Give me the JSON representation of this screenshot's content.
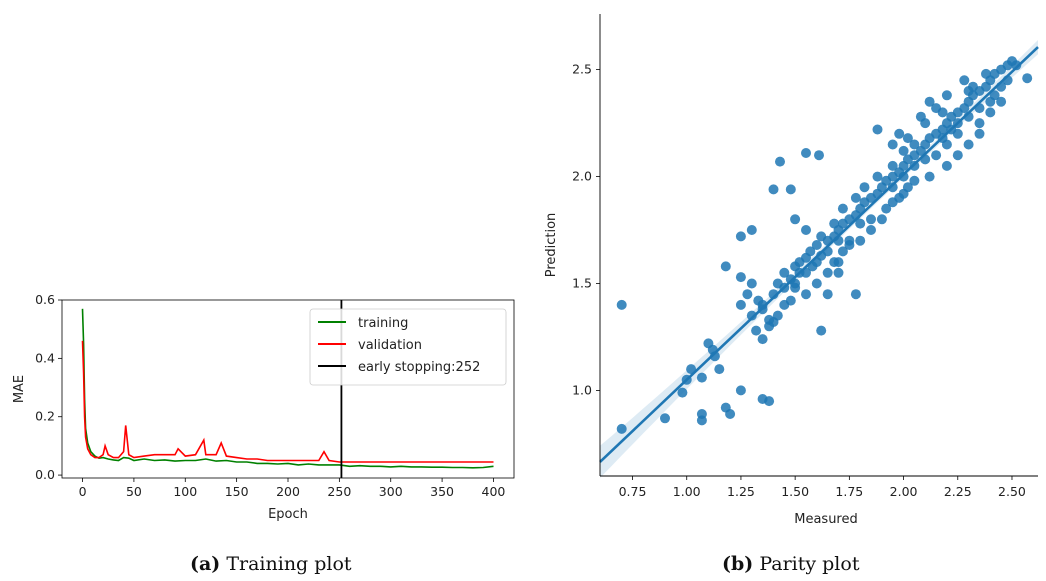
{
  "captions": {
    "a": {
      "tag": "(a)",
      "text": "Training plot"
    },
    "b": {
      "tag": "(b)",
      "text": "Parity plot"
    }
  },
  "chart_data": [
    {
      "type": "line",
      "xlabel": "Epoch",
      "ylabel": "MAE",
      "xlim": [
        -20,
        420
      ],
      "ylim": [
        -0.01,
        0.6
      ],
      "xticks": [
        0,
        50,
        100,
        150,
        200,
        250,
        300,
        350,
        400
      ],
      "yticks": [
        0.0,
        0.2,
        0.4,
        0.6
      ],
      "grid": false,
      "legend_position": "top-right",
      "series": [
        {
          "name": "training",
          "color": "#008000",
          "x": [
            0,
            1,
            2,
            3,
            5,
            8,
            12,
            16,
            20,
            25,
            30,
            35,
            40,
            45,
            50,
            60,
            70,
            80,
            90,
            100,
            110,
            120,
            130,
            140,
            150,
            160,
            170,
            180,
            190,
            200,
            210,
            220,
            230,
            240,
            250,
            260,
            270,
            280,
            290,
            300,
            310,
            320,
            330,
            340,
            350,
            360,
            370,
            380,
            390,
            400
          ],
          "y": [
            0.57,
            0.45,
            0.26,
            0.16,
            0.11,
            0.08,
            0.065,
            0.058,
            0.06,
            0.055,
            0.052,
            0.05,
            0.06,
            0.058,
            0.05,
            0.055,
            0.05,
            0.052,
            0.048,
            0.05,
            0.05,
            0.055,
            0.048,
            0.05,
            0.045,
            0.045,
            0.04,
            0.04,
            0.038,
            0.04,
            0.035,
            0.038,
            0.035,
            0.035,
            0.035,
            0.03,
            0.032,
            0.03,
            0.03,
            0.028,
            0.03,
            0.028,
            0.028,
            0.027,
            0.027,
            0.026,
            0.026,
            0.025,
            0.026,
            0.03
          ]
        },
        {
          "name": "validation",
          "color": "#ff0000",
          "x": [
            0,
            1,
            2,
            3,
            5,
            8,
            12,
            16,
            20,
            22,
            25,
            30,
            35,
            40,
            42,
            45,
            50,
            60,
            70,
            80,
            90,
            93,
            100,
            110,
            118,
            120,
            130,
            135,
            140,
            150,
            160,
            170,
            180,
            190,
            200,
            210,
            220,
            230,
            235,
            240,
            250,
            260,
            270,
            280,
            290,
            300,
            310,
            320,
            330,
            340,
            350,
            360,
            370,
            380,
            390,
            400
          ],
          "y": [
            0.46,
            0.35,
            0.2,
            0.13,
            0.09,
            0.07,
            0.06,
            0.06,
            0.07,
            0.1,
            0.07,
            0.06,
            0.06,
            0.08,
            0.17,
            0.07,
            0.06,
            0.065,
            0.07,
            0.07,
            0.07,
            0.09,
            0.065,
            0.07,
            0.12,
            0.07,
            0.07,
            0.11,
            0.065,
            0.06,
            0.055,
            0.055,
            0.05,
            0.05,
            0.05,
            0.05,
            0.05,
            0.05,
            0.08,
            0.05,
            0.045,
            0.045,
            0.045,
            0.045,
            0.045,
            0.045,
            0.045,
            0.045,
            0.045,
            0.045,
            0.045,
            0.045,
            0.045,
            0.045,
            0.045,
            0.045
          ]
        },
        {
          "name": "early stopping:252",
          "color": "#000000",
          "type": "vline",
          "x": 252
        }
      ]
    },
    {
      "type": "scatter",
      "xlabel": "Measured",
      "ylabel": "Prediction",
      "xlim": [
        0.6,
        2.62
      ],
      "ylim": [
        0.6,
        2.76
      ],
      "xticks": [
        "0.75",
        "1.00",
        "1.25",
        "1.50",
        "1.75",
        "2.00",
        "2.25",
        "2.50"
      ],
      "yticks": [
        "1.0",
        "1.5",
        "2.0",
        "2.5"
      ],
      "grid": false,
      "point_color": "#1f77b4",
      "regression": {
        "slope": 0.96,
        "intercept": 0.09,
        "color": "#1f77b4"
      },
      "points": [
        [
          0.7,
          1.4
        ],
        [
          0.7,
          0.82
        ],
        [
          0.9,
          0.87
        ],
        [
          0.98,
          0.99
        ],
        [
          1.0,
          1.05
        ],
        [
          1.02,
          1.1
        ],
        [
          1.07,
          0.86
        ],
        [
          1.07,
          0.89
        ],
        [
          1.07,
          1.06
        ],
        [
          1.1,
          1.22
        ],
        [
          1.12,
          1.19
        ],
        [
          1.13,
          1.16
        ],
        [
          1.15,
          1.1
        ],
        [
          1.18,
          0.92
        ],
        [
          1.2,
          0.89
        ],
        [
          1.18,
          1.58
        ],
        [
          1.25,
          1.0
        ],
        [
          1.25,
          1.72
        ],
        [
          1.3,
          1.75
        ],
        [
          1.35,
          0.96
        ],
        [
          1.38,
          0.95
        ],
        [
          1.4,
          1.94
        ],
        [
          1.43,
          2.07
        ],
        [
          1.48,
          1.94
        ],
        [
          1.55,
          2.11
        ],
        [
          1.61,
          2.1
        ],
        [
          1.5,
          1.8
        ],
        [
          1.55,
          1.75
        ],
        [
          1.62,
          1.28
        ],
        [
          1.25,
          1.53
        ],
        [
          1.25,
          1.4
        ],
        [
          1.28,
          1.45
        ],
        [
          1.3,
          1.5
        ],
        [
          1.33,
          1.42
        ],
        [
          1.35,
          1.38
        ],
        [
          1.38,
          1.33
        ],
        [
          1.3,
          1.35
        ],
        [
          1.35,
          1.24
        ],
        [
          1.38,
          1.3
        ],
        [
          1.4,
          1.45
        ],
        [
          1.42,
          1.5
        ],
        [
          1.45,
          1.55
        ],
        [
          1.48,
          1.52
        ],
        [
          1.5,
          1.58
        ],
        [
          1.52,
          1.6
        ],
        [
          1.55,
          1.62
        ],
        [
          1.57,
          1.65
        ],
        [
          1.6,
          1.68
        ],
        [
          1.62,
          1.63
        ],
        [
          1.65,
          1.7
        ],
        [
          1.68,
          1.72
        ],
        [
          1.7,
          1.75
        ],
        [
          1.72,
          1.78
        ],
        [
          1.75,
          1.8
        ],
        [
          1.78,
          1.82
        ],
        [
          1.8,
          1.85
        ],
        [
          1.82,
          1.88
        ],
        [
          1.85,
          1.9
        ],
        [
          1.88,
          1.92
        ],
        [
          1.9,
          1.95
        ],
        [
          1.92,
          1.98
        ],
        [
          1.95,
          2.0
        ],
        [
          1.98,
          2.02
        ],
        [
          2.0,
          2.05
        ],
        [
          2.02,
          2.08
        ],
        [
          2.05,
          2.1
        ],
        [
          2.08,
          2.12
        ],
        [
          2.1,
          2.15
        ],
        [
          2.12,
          2.18
        ],
        [
          2.15,
          2.2
        ],
        [
          2.18,
          2.22
        ],
        [
          2.2,
          2.25
        ],
        [
          2.22,
          2.28
        ],
        [
          2.25,
          2.3
        ],
        [
          2.28,
          2.32
        ],
        [
          2.3,
          2.35
        ],
        [
          2.32,
          2.38
        ],
        [
          2.35,
          2.4
        ],
        [
          2.38,
          2.42
        ],
        [
          2.4,
          2.45
        ],
        [
          2.42,
          2.48
        ],
        [
          2.45,
          2.5
        ],
        [
          2.48,
          2.52
        ],
        [
          2.5,
          2.54
        ],
        [
          2.52,
          2.52
        ],
        [
          2.57,
          2.46
        ],
        [
          2.45,
          2.35
        ],
        [
          2.4,
          2.3
        ],
        [
          2.35,
          2.25
        ],
        [
          2.3,
          2.4
        ],
        [
          2.25,
          2.2
        ],
        [
          2.2,
          2.15
        ],
        [
          2.18,
          2.3
        ],
        [
          2.15,
          2.1
        ],
        [
          2.12,
          2.0
        ],
        [
          2.1,
          2.25
        ],
        [
          2.05,
          2.15
        ],
        [
          2.02,
          1.95
        ],
        [
          2.0,
          2.12
        ],
        [
          1.98,
          1.9
        ],
        [
          1.95,
          2.05
        ],
        [
          1.92,
          1.85
        ],
        [
          1.9,
          1.8
        ],
        [
          1.88,
          2.0
        ],
        [
          1.85,
          1.75
        ],
        [
          1.82,
          1.95
        ],
        [
          1.8,
          1.7
        ],
        [
          1.78,
          1.9
        ],
        [
          1.75,
          1.68
        ],
        [
          1.72,
          1.85
        ],
        [
          1.7,
          1.6
        ],
        [
          1.68,
          1.78
        ],
        [
          1.65,
          1.55
        ],
        [
          1.62,
          1.72
        ],
        [
          1.6,
          1.5
        ],
        [
          1.58,
          1.58
        ],
        [
          1.55,
          1.45
        ],
        [
          1.52,
          1.55
        ],
        [
          1.5,
          1.48
        ],
        [
          1.48,
          1.42
        ],
        [
          1.45,
          1.4
        ],
        [
          1.42,
          1.35
        ],
        [
          1.4,
          1.32
        ],
        [
          1.35,
          1.4
        ],
        [
          1.32,
          1.28
        ],
        [
          1.78,
          1.45
        ],
        [
          1.7,
          1.55
        ],
        [
          1.65,
          1.45
        ],
        [
          1.68,
          1.6
        ],
        [
          1.72,
          1.65
        ],
        [
          1.88,
          2.22
        ],
        [
          1.95,
          2.15
        ],
        [
          1.98,
          2.2
        ],
        [
          2.02,
          2.18
        ],
        [
          2.08,
          2.28
        ],
        [
          2.12,
          2.35
        ],
        [
          2.15,
          2.32
        ],
        [
          2.2,
          2.38
        ],
        [
          2.28,
          2.45
        ],
        [
          2.32,
          2.42
        ],
        [
          2.38,
          2.48
        ],
        [
          2.42,
          2.38
        ],
        [
          2.48,
          2.45
        ],
        [
          2.25,
          2.1
        ],
        [
          2.2,
          2.05
        ],
        [
          2.3,
          2.15
        ],
        [
          2.35,
          2.2
        ],
        [
          2.05,
          1.98
        ],
        [
          2.0,
          1.92
        ],
        [
          1.95,
          1.88
        ],
        [
          1.85,
          1.8
        ],
        [
          1.8,
          1.78
        ],
        [
          1.75,
          1.7
        ],
        [
          1.7,
          1.7
        ],
        [
          1.65,
          1.65
        ],
        [
          1.6,
          1.6
        ],
        [
          1.55,
          1.55
        ],
        [
          1.5,
          1.5
        ],
        [
          1.45,
          1.48
        ],
        [
          2.4,
          2.35
        ],
        [
          2.45,
          2.42
        ],
        [
          2.35,
          2.32
        ],
        [
          2.3,
          2.28
        ],
        [
          2.25,
          2.25
        ],
        [
          2.22,
          2.22
        ],
        [
          2.18,
          2.18
        ],
        [
          2.1,
          2.08
        ],
        [
          2.05,
          2.05
        ],
        [
          2.0,
          2.0
        ],
        [
          1.95,
          1.95
        ]
      ]
    }
  ]
}
